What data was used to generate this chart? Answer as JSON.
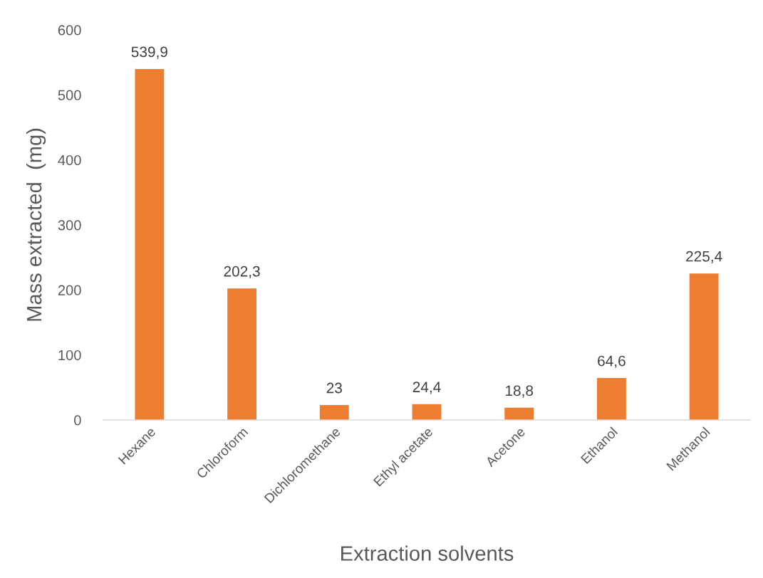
{
  "chart_data": {
    "type": "bar",
    "categories": [
      "Hexane",
      "Chloroform",
      "Dichloromethane",
      "Ethyl acetate",
      "Acetone",
      "Ethanol",
      "Methanol"
    ],
    "values": [
      539.9,
      202.3,
      23,
      24.4,
      18.8,
      64.6,
      225.4
    ],
    "value_labels": [
      "539,9",
      "202,3",
      "23",
      "24,4",
      "18,8",
      "64,6",
      "225,4"
    ],
    "color": "#ed7d31",
    "xlabel": "Extraction solvents",
    "ylabel": "Mass extracted  (mg)",
    "ylim": [
      0,
      600
    ],
    "yticks": [
      0,
      100,
      200,
      300,
      400,
      500,
      600
    ],
    "grid": false
  }
}
